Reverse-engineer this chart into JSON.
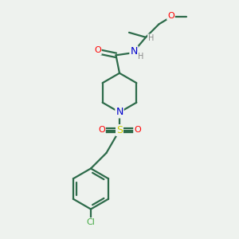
{
  "bg_color": "#eef2ee",
  "bond_color": "#2d6b4a",
  "atom_colors": {
    "O": "#ff0000",
    "N": "#0000cc",
    "S": "#cccc00",
    "Cl": "#44aa44",
    "H": "#888888",
    "C": "#2d6b4a"
  },
  "figsize": [
    3.0,
    3.0
  ],
  "dpi": 100
}
